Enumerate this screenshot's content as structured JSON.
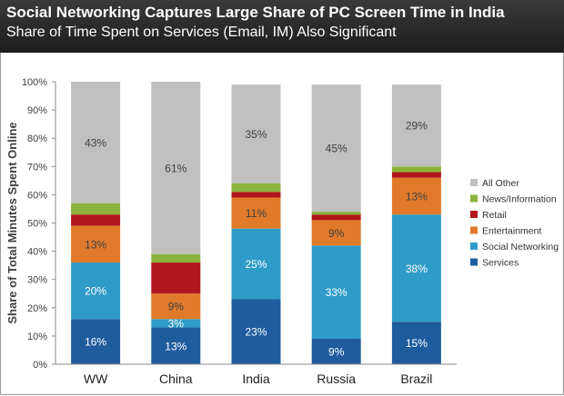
{
  "header": {
    "title": "Social Networking Captures Large Share of PC Screen Time in India",
    "subtitle": "Share of Time Spent on Services (Email, IM) Also Significant"
  },
  "chart_data": {
    "type": "bar",
    "stacked": true,
    "title": "Social Networking Captures Large Share of PC Screen Time in India",
    "subtitle": "Share of Time Spent on Services (Email, IM) Also Significant",
    "ylabel": "Share of Total Minutes Spent Online",
    "xlabel": "",
    "ylim": [
      0,
      100
    ],
    "yticks": [
      "0%",
      "10%",
      "20%",
      "30%",
      "40%",
      "50%",
      "60%",
      "70%",
      "80%",
      "90%",
      "100%"
    ],
    "grid": false,
    "legend_position": "right",
    "categories": [
      "WW",
      "China",
      "India",
      "Russia",
      "Brazil"
    ],
    "series": [
      {
        "name": "Services",
        "color": "#1f5c9e",
        "values": [
          16,
          13,
          23,
          9,
          15
        ],
        "labels": [
          "16%",
          "13%",
          "23%",
          "9%",
          "15%"
        ]
      },
      {
        "name": "Social Networking",
        "color": "#2f9bc8",
        "values": [
          20,
          3,
          25,
          33,
          38
        ],
        "labels": [
          "20%",
          "3%",
          "25%",
          "33%",
          "38%"
        ]
      },
      {
        "name": "Entertainment",
        "color": "#e07a2a",
        "values": [
          13,
          9,
          11,
          9,
          13
        ],
        "labels": [
          "13%",
          "9%",
          "11%",
          "9%",
          "13%"
        ]
      },
      {
        "name": "Retail",
        "color": "#b0171c",
        "values": [
          4,
          11,
          2,
          2,
          2
        ],
        "labels": [
          "",
          "",
          "",
          "",
          ""
        ]
      },
      {
        "name": "News/Information",
        "color": "#8cb43c",
        "values": [
          4,
          3,
          3,
          1,
          2
        ],
        "labels": [
          "",
          "",
          "",
          "",
          ""
        ]
      },
      {
        "name": "All Other",
        "color": "#c0c0c0",
        "values": [
          43,
          61,
          35,
          45,
          29
        ],
        "labels": [
          "43%",
          "61%",
          "35%",
          "45%",
          "29%"
        ]
      }
    ]
  }
}
